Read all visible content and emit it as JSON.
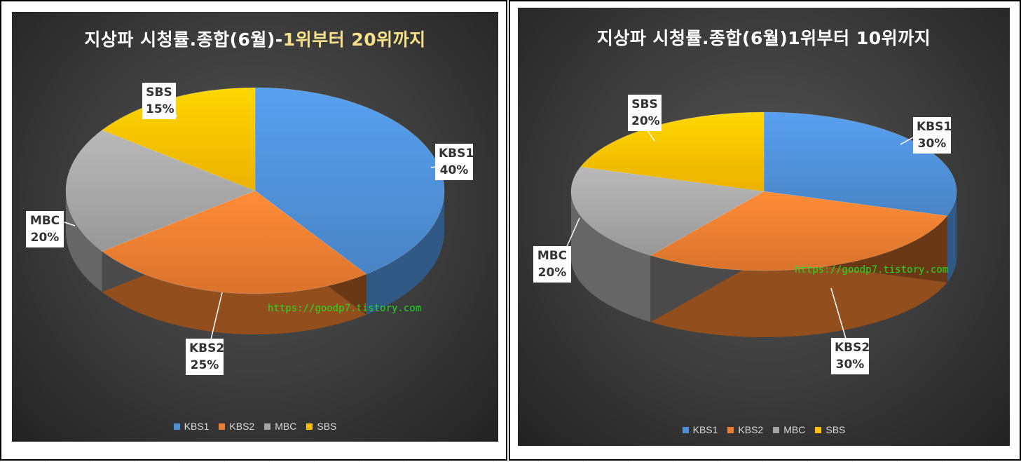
{
  "chart_data": [
    {
      "type": "pie",
      "title": "지상파 시청률.종합(6월)-1위부터 20위까지",
      "title_parts": {
        "main": "지상파 시청률.종합(6월)-",
        "highlight": "1위부터 20위까지"
      },
      "categories": [
        "KBS1",
        "KBS2",
        "MBC",
        "SBS"
      ],
      "values": [
        40,
        25,
        20,
        15
      ],
      "value_labels": [
        "40%",
        "25%",
        "20%",
        "15%"
      ],
      "legend": "bottom",
      "watermark": "https://goodp7.tistory.com"
    },
    {
      "type": "pie",
      "title": "지상파 시청률.종합(6월)1위부터 10위까지",
      "categories": [
        "KBS1",
        "KBS2",
        "MBC",
        "SBS"
      ],
      "values": [
        30,
        30,
        20,
        20
      ],
      "value_labels": [
        "30%",
        "30%",
        "20%",
        "20%"
      ],
      "legend": "bottom",
      "watermark": "https://goodp7.tistory.com"
    }
  ],
  "colors": {
    "KBS1": "#4f8fd6",
    "KBS2": "#ed7d31",
    "MBC": "#a5a5a5",
    "SBS": "#ffc000"
  }
}
